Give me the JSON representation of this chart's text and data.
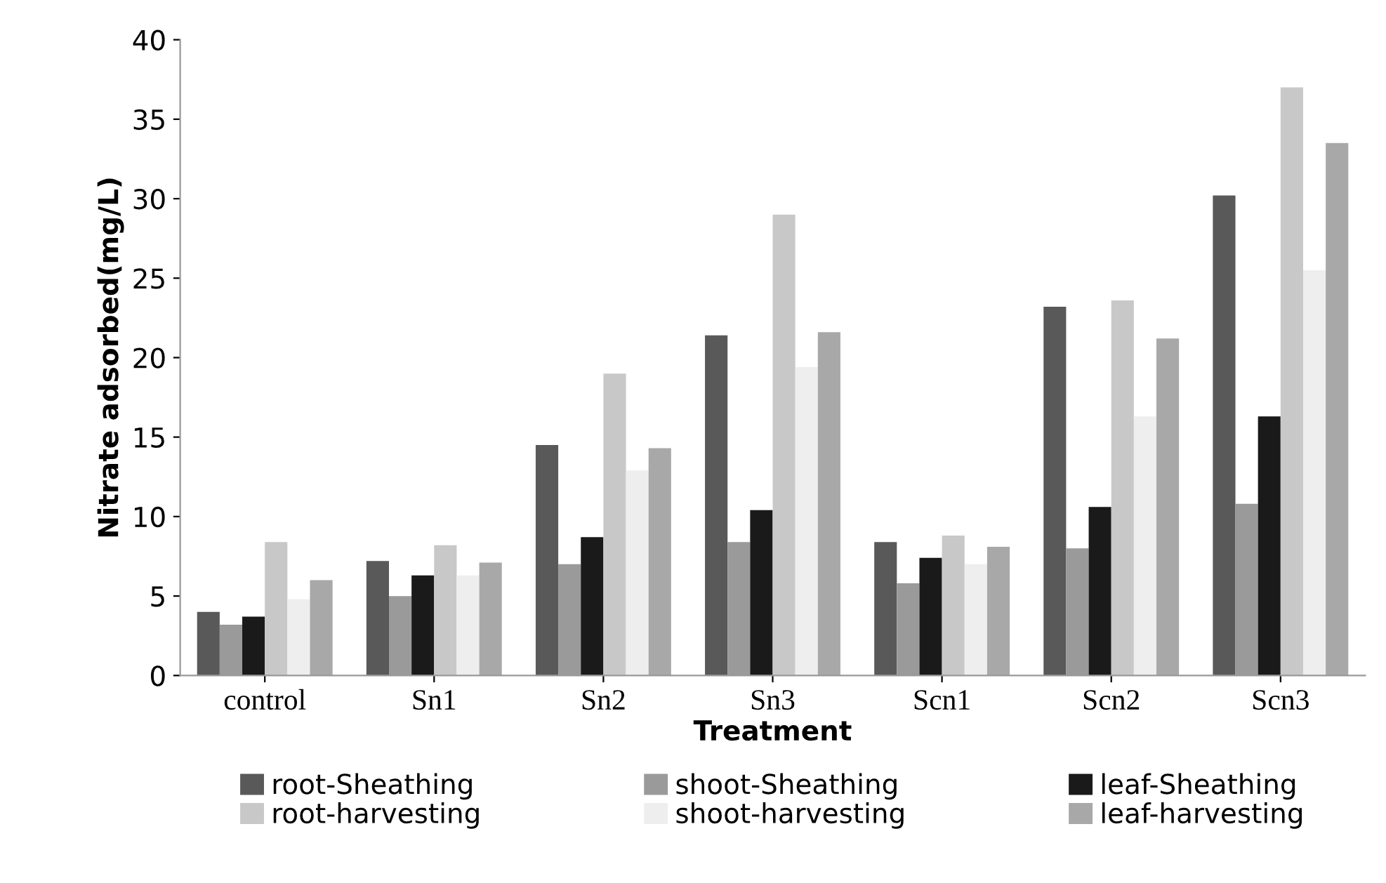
{
  "chart_data": {
    "type": "bar",
    "xlabel": "Treatment",
    "ylabel": "Nitrate adsorbed(mg/L)",
    "categories": [
      "control",
      "Sn1",
      "Sn2",
      "Sn3",
      "Scn1",
      "Scn2",
      "Scn3"
    ],
    "series": [
      {
        "name": "root-Sheathing",
        "color": "#595959",
        "values": [
          4,
          7.2,
          14.5,
          21.4,
          8.4,
          23.2,
          30.2
        ]
      },
      {
        "name": "shoot-Sheathing",
        "color": "#9a9a9a",
        "values": [
          3.2,
          5,
          7,
          8.4,
          5.8,
          8,
          10.8
        ]
      },
      {
        "name": "leaf-Sheathing",
        "color": "#1a1a1a",
        "values": [
          3.7,
          6.3,
          8.7,
          10.4,
          7.4,
          10.6,
          16.3
        ]
      },
      {
        "name": "root-harvesting",
        "color": "#c8c8c8",
        "values": [
          8.4,
          8.2,
          19,
          29,
          8.8,
          23.6,
          37
        ]
      },
      {
        "name": "shoot-harvesting",
        "color": "#eeeeee",
        "values": [
          4.8,
          6.3,
          12.9,
          19.4,
          7,
          16.3,
          25.5
        ]
      },
      {
        "name": "leaf-harvesting",
        "color": "#a8a8a8",
        "values": [
          6,
          7.1,
          14.3,
          21.6,
          8.1,
          21.2,
          33.5
        ]
      }
    ],
    "ylim": [
      0,
      40
    ],
    "yticks": [
      0,
      5,
      10,
      15,
      20,
      25,
      30,
      35,
      40
    ],
    "grid": false,
    "legend": "bottom"
  }
}
